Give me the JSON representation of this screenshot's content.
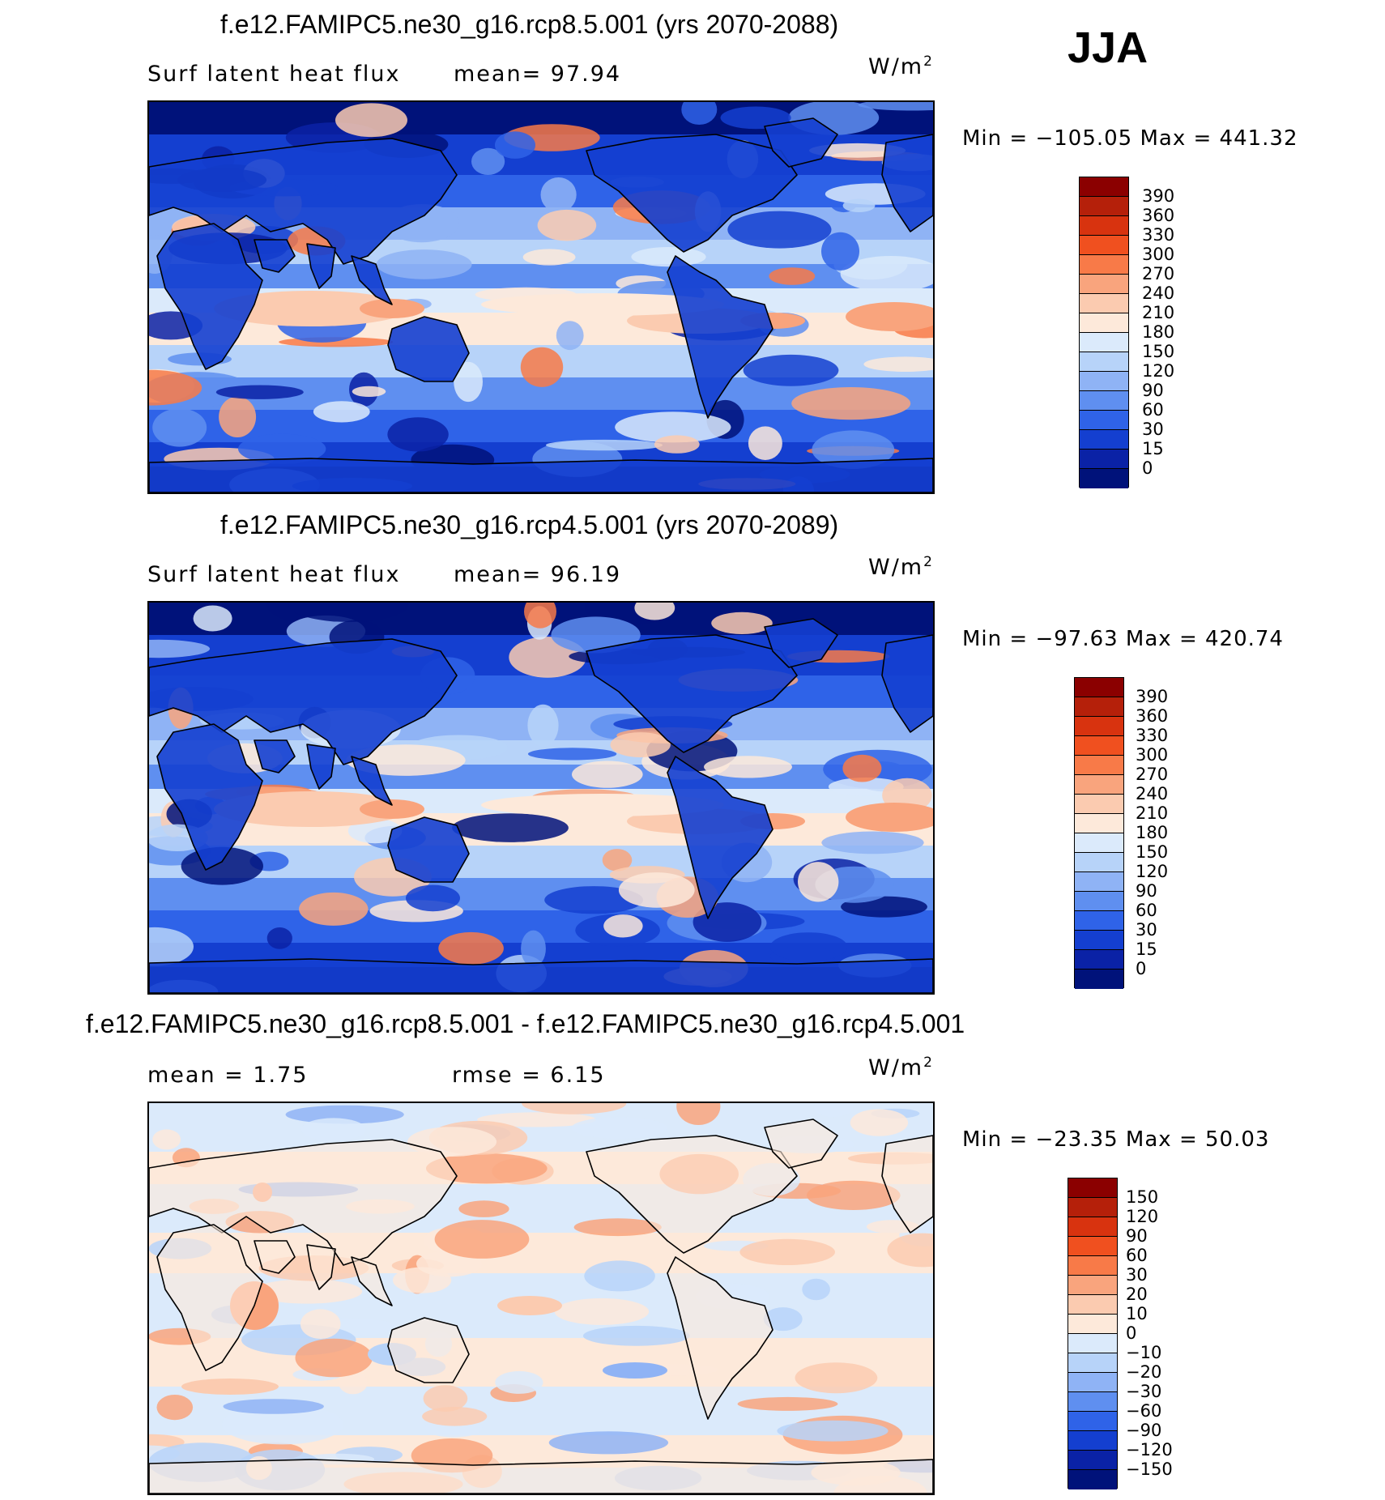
{
  "season": "JJA",
  "panels": [
    {
      "title": "f.e12.FAMIPC5.ne30_g16.rcp8.5.001 (yrs 2070-2088)",
      "subtitle_left": "Surf latent heat flux",
      "subtitle_mid": "mean=  97.94",
      "unit_base": "W/m",
      "unit_exp": "2",
      "minmax": "Min = −105.05 Max = 441.32",
      "colorbar_ticks": [
        "390",
        "360",
        "330",
        "300",
        "270",
        "240",
        "210",
        "180",
        "150",
        "120",
        "90",
        "60",
        "30",
        "15",
        "0"
      ],
      "colorbar_colors": [
        "#8b0000",
        "#b5200a",
        "#d8330f",
        "#f0501f",
        "#f87a48",
        "#f9a47d",
        "#fbcbb0",
        "#fde9da",
        "#dbeafb",
        "#b7d3f9",
        "#8fb3f5",
        "#5f8ff0",
        "#2f63e8",
        "#143fd0",
        "#0a22a6",
        "#00127a"
      ],
      "map_palette": [
        "#00127a",
        "#0a22a6",
        "#143fd0",
        "#2f63e8",
        "#5f8ff0",
        "#8fb3f5",
        "#b7d3f9",
        "#dbeafb",
        "#fde9da",
        "#fbcbb0",
        "#f9a47d",
        "#f87a48"
      ]
    },
    {
      "title": "f.e12.FAMIPC5.ne30_g16.rcp4.5.001 (yrs 2070-2089)",
      "subtitle_left": "Surf latent heat flux",
      "subtitle_mid": "mean=  96.19",
      "unit_base": "W/m",
      "unit_exp": "2",
      "minmax": "Min = −97.63 Max = 420.74",
      "colorbar_ticks": [
        "390",
        "360",
        "330",
        "300",
        "270",
        "240",
        "210",
        "180",
        "150",
        "120",
        "90",
        "60",
        "30",
        "15",
        "0"
      ],
      "colorbar_colors": [
        "#8b0000",
        "#b5200a",
        "#d8330f",
        "#f0501f",
        "#f87a48",
        "#f9a47d",
        "#fbcbb0",
        "#fde9da",
        "#dbeafb",
        "#b7d3f9",
        "#8fb3f5",
        "#5f8ff0",
        "#2f63e8",
        "#143fd0",
        "#0a22a6",
        "#00127a"
      ],
      "map_palette": [
        "#00127a",
        "#0a22a6",
        "#143fd0",
        "#2f63e8",
        "#5f8ff0",
        "#8fb3f5",
        "#b7d3f9",
        "#dbeafb",
        "#fde9da",
        "#fbcbb0",
        "#f9a47d",
        "#f87a48"
      ]
    },
    {
      "title": "f.e12.FAMIPC5.ne30_g16.rcp8.5.001 - f.e12.FAMIPC5.ne30_g16.rcp4.5.001",
      "subtitle_left": "mean =   1.75",
      "subtitle_mid": "rmse =   6.15",
      "unit_base": "W/m",
      "unit_exp": "2",
      "minmax": "Min = −23.35 Max =  50.03",
      "colorbar_ticks": [
        "150",
        "120",
        "90",
        "60",
        "30",
        "20",
        "10",
        "0",
        "−10",
        "−20",
        "−30",
        "−60",
        "−90",
        "−120",
        "−150"
      ],
      "colorbar_colors": [
        "#8b0000",
        "#b5200a",
        "#d8330f",
        "#f0501f",
        "#f87a48",
        "#f9a47d",
        "#fbcbb0",
        "#fde9da",
        "#dbeafb",
        "#b7d3f9",
        "#8fb3f5",
        "#5f8ff0",
        "#2f63e8",
        "#143fd0",
        "#0a22a6",
        "#00127a"
      ],
      "map_palette": [
        "#dbeafb",
        "#fde9da",
        "#fbcbb0",
        "#b7d3f9",
        "#f9a47d",
        "#8fb3f5"
      ]
    }
  ]
}
